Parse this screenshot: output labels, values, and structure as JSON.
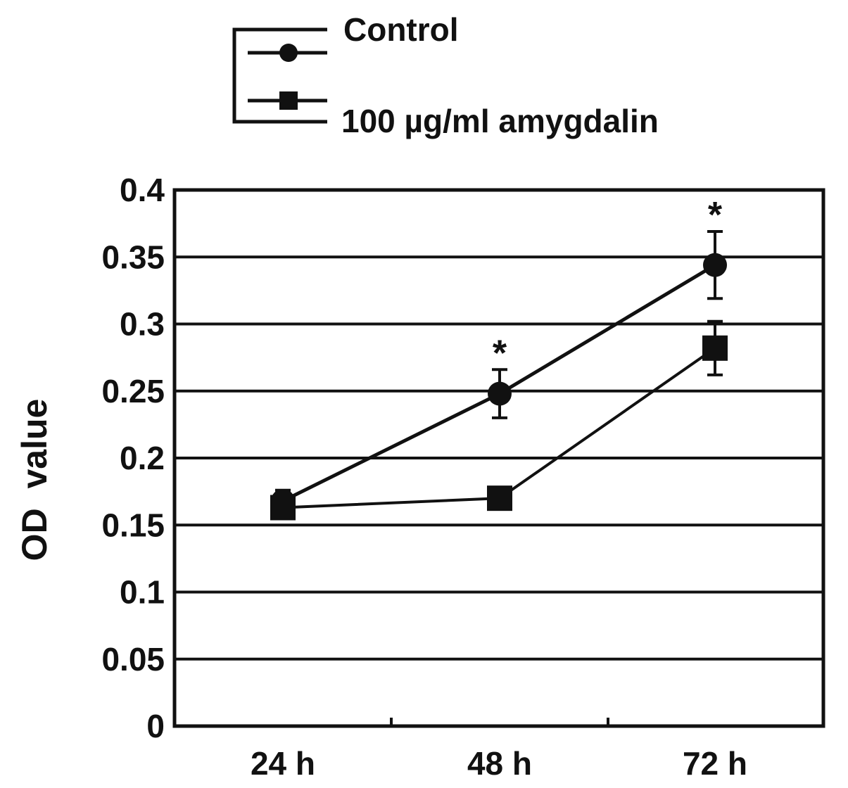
{
  "chart_data": {
    "type": "line",
    "title": "",
    "xlabel": "",
    "ylabel": "OD  value",
    "categories": [
      "24 h",
      "48 h",
      "72 h"
    ],
    "ylim": [
      0,
      0.4
    ],
    "yticks": [
      "0",
      "0.05",
      "0.1",
      "0.15",
      "0.2",
      "0.25",
      "0.3",
      "0.35",
      "0.4"
    ],
    "grid": true,
    "legend_position": "top",
    "series": [
      {
        "name": "Control",
        "marker": "circle",
        "values": [
          0.168,
          0.248,
          0.344
        ],
        "errors": [
          0.008,
          0.018,
          0.025
        ],
        "significance": [
          "",
          "*",
          "*"
        ]
      },
      {
        "name": "100 µg/ml amygdalin",
        "marker": "square",
        "values": [
          0.163,
          0.17,
          0.282
        ],
        "errors": [
          0.006,
          0.008,
          0.02
        ],
        "significance": [
          "",
          "",
          ""
        ]
      }
    ],
    "colors": {
      "line": "#111111",
      "background": "#ffffff"
    }
  }
}
